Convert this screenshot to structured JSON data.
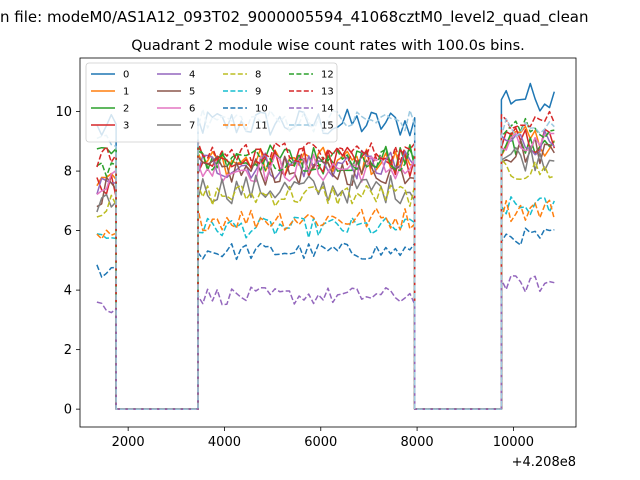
{
  "chart_data": {
    "type": "line",
    "suptitle": "n file: modeM0/AS1A12_093T02_9000005594_41068cztM0_level2_quad_clean",
    "title": "Quadrant 2 module wise count rates with 100.0s bins.",
    "xlabel": "",
    "ylabel": "",
    "x_offset_label": "+4.208e8",
    "xlim": [
      1000,
      11300
    ],
    "ylim": [
      -0.6,
      11.8
    ],
    "xticks": [
      2000,
      4000,
      6000,
      8000,
      10000
    ],
    "xtick_labels": [
      "2000",
      "4000",
      "6000",
      "8000",
      "10000"
    ],
    "yticks": [
      0,
      2,
      4,
      6,
      8,
      10
    ],
    "ytick_labels": [
      "0",
      "2",
      "4",
      "6",
      "8",
      "10"
    ],
    "grid": false,
    "legend_position": "upper-left",
    "legend_columns": 4,
    "segments": [
      {
        "start": 1350,
        "end": 1750
      },
      {
        "start": 1750,
        "end": 3450
      },
      {
        "start": 3450,
        "end": 7950
      },
      {
        "start": 7950,
        "end": 9750
      },
      {
        "start": 9750,
        "end": 10850
      }
    ],
    "series": [
      {
        "name": "0",
        "color": "#1f77b4",
        "dash": "solid",
        "levels": [
          9.4,
          0,
          9.6,
          0,
          10.5
        ],
        "amp": 0.5
      },
      {
        "name": "1",
        "color": "#ff7f0e",
        "dash": "solid",
        "levels": [
          8.0,
          0,
          8.3,
          0,
          9.0
        ],
        "amp": 0.5
      },
      {
        "name": "2",
        "color": "#2ca02c",
        "dash": "solid",
        "levels": [
          8.6,
          0,
          8.4,
          0,
          8.8
        ],
        "amp": 0.5
      },
      {
        "name": "3",
        "color": "#d62728",
        "dash": "solid",
        "levels": [
          7.6,
          0,
          8.3,
          0,
          9.0
        ],
        "amp": 0.5
      },
      {
        "name": "4",
        "color": "#9467bd",
        "dash": "solid",
        "levels": [
          7.4,
          0,
          8.2,
          0,
          9.0
        ],
        "amp": 0.5
      },
      {
        "name": "5",
        "color": "#8c564b",
        "dash": "solid",
        "levels": [
          7.3,
          0,
          8.0,
          0,
          8.7
        ],
        "amp": 0.5
      },
      {
        "name": "6",
        "color": "#e377c2",
        "dash": "solid",
        "levels": [
          7.7,
          0,
          8.1,
          0,
          8.8
        ],
        "amp": 0.5
      },
      {
        "name": "7",
        "color": "#7f7f7f",
        "dash": "solid",
        "levels": [
          7.0,
          0,
          7.4,
          0,
          8.5
        ],
        "amp": 0.5
      },
      {
        "name": "8",
        "color": "#bcbd22",
        "dash": "dash",
        "levels": [
          6.8,
          0,
          7.2,
          0,
          8.0
        ],
        "amp": 0.4
      },
      {
        "name": "9",
        "color": "#17becf",
        "dash": "dash",
        "levels": [
          5.8,
          0,
          6.1,
          0,
          6.8
        ],
        "amp": 0.35
      },
      {
        "name": "10",
        "color": "#1f77b4",
        "dash": "dash",
        "levels": [
          4.7,
          0,
          5.3,
          0,
          5.8
        ],
        "amp": 0.3
      },
      {
        "name": "11",
        "color": "#ff7f0e",
        "dash": "dash",
        "levels": [
          5.7,
          0,
          6.4,
          0,
          6.7
        ],
        "amp": 0.4
      },
      {
        "name": "12",
        "color": "#2ca02c",
        "dash": "dash",
        "levels": [
          8.2,
          0,
          8.4,
          0,
          9.4
        ],
        "amp": 0.4
      },
      {
        "name": "13",
        "color": "#d62728",
        "dash": "dash",
        "levels": [
          8.5,
          0,
          8.6,
          0,
          9.8
        ],
        "amp": 0.4
      },
      {
        "name": "14",
        "color": "#9467bd",
        "dash": "dash",
        "levels": [
          3.5,
          0,
          3.8,
          0,
          4.2
        ],
        "amp": 0.3
      },
      {
        "name": "15",
        "color": "#9ecae1",
        "dash": "dash",
        "levels": [
          9.2,
          0,
          9.7,
          0,
          9.4
        ],
        "amp": 0.4
      }
    ]
  }
}
